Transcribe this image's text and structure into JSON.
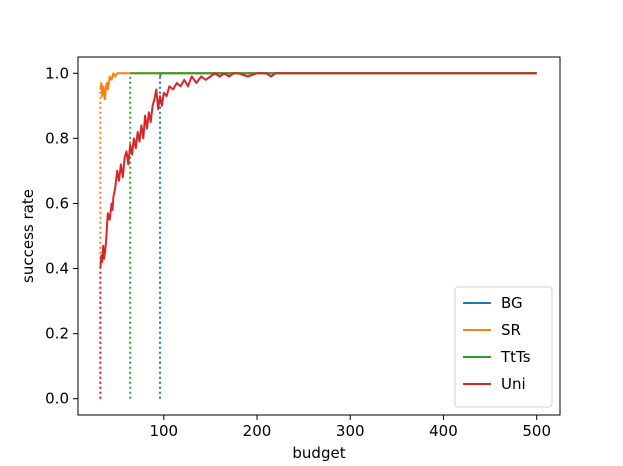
{
  "chart_data": {
    "type": "line",
    "title": "",
    "xlabel": "budget",
    "ylabel": "success rate",
    "xlim": [
      8,
      525
    ],
    "ylim": [
      -0.05,
      1.05
    ],
    "xticks": [
      100,
      200,
      300,
      400,
      500
    ],
    "yticks": [
      0.0,
      0.2,
      0.4,
      0.6,
      0.8,
      1.0
    ],
    "xtick_labels": [
      "100",
      "200",
      "300",
      "400",
      "500"
    ],
    "ytick_labels": [
      "0.0",
      "0.2",
      "0.4",
      "0.6",
      "0.8",
      "1.0"
    ],
    "grid": false,
    "legend_position": "lower-right",
    "series": [
      {
        "name": "BG",
        "color": "#1f77b4",
        "x": [
          96,
          97,
          100,
          105,
          120,
          150,
          200,
          300,
          400,
          500
        ],
        "y": [
          0.99,
          1.0,
          1.0,
          1.0,
          1.0,
          1.0,
          1.0,
          1.0,
          1.0,
          1.0
        ],
        "start_marker": {
          "x": 96,
          "y_from": 0.0,
          "y_to": 0.99
        }
      },
      {
        "name": "SR",
        "color": "#ff7f0e",
        "x": [
          32,
          33,
          34,
          35,
          36,
          37,
          38,
          39,
          40,
          41,
          42,
          44,
          46,
          48,
          50,
          55,
          60,
          100,
          200,
          300,
          400,
          500
        ],
        "y": [
          0.95,
          0.97,
          0.93,
          0.96,
          0.94,
          0.92,
          0.96,
          0.97,
          0.95,
          0.97,
          0.99,
          0.98,
          1.0,
          0.99,
          1.0,
          1.0,
          1.0,
          1.0,
          1.0,
          1.0,
          1.0,
          1.0
        ],
        "start_marker": {
          "x": 32,
          "y_from": 0.0,
          "y_to": 0.95
        }
      },
      {
        "name": "TtTs",
        "color": "#2ca02c",
        "x": [
          64,
          65,
          70,
          80,
          100,
          150,
          200,
          300,
          400,
          500
        ],
        "y": [
          1.0,
          1.0,
          1.0,
          1.0,
          1.0,
          1.0,
          1.0,
          1.0,
          1.0,
          1.0
        ],
        "start_marker": {
          "x": 64,
          "y_from": 0.0,
          "y_to": 1.0
        }
      },
      {
        "name": "Uni",
        "color": "#d62728",
        "x": [
          32,
          33,
          34,
          35,
          36,
          37,
          38,
          40,
          42,
          44,
          45,
          46,
          48,
          50,
          52,
          54,
          56,
          58,
          60,
          62,
          64,
          66,
          68,
          70,
          72,
          74,
          76,
          78,
          80,
          82,
          84,
          86,
          88,
          90,
          92,
          94,
          96,
          98,
          100,
          103,
          106,
          110,
          114,
          118,
          122,
          126,
          130,
          135,
          140,
          145,
          150,
          155,
          160,
          165,
          170,
          175,
          180,
          190,
          200,
          210,
          215,
          220,
          230,
          260,
          300,
          400,
          500
        ],
        "y": [
          0.4,
          0.44,
          0.42,
          0.47,
          0.43,
          0.45,
          0.48,
          0.57,
          0.55,
          0.6,
          0.58,
          0.62,
          0.65,
          0.7,
          0.67,
          0.72,
          0.68,
          0.74,
          0.76,
          0.72,
          0.78,
          0.75,
          0.8,
          0.77,
          0.82,
          0.79,
          0.84,
          0.8,
          0.87,
          0.83,
          0.88,
          0.85,
          0.9,
          0.92,
          0.95,
          0.89,
          0.93,
          0.9,
          0.94,
          0.93,
          0.96,
          0.95,
          0.97,
          0.96,
          0.98,
          0.96,
          0.99,
          0.97,
          0.99,
          0.98,
          0.99,
          1.0,
          0.99,
          1.0,
          0.99,
          1.0,
          1.0,
          0.99,
          1.0,
          1.0,
          0.99,
          1.0,
          1.0,
          1.0,
          1.0,
          1.0,
          1.0
        ],
        "start_marker": {
          "x": 32,
          "y_from": 0.0,
          "y_to": 0.4
        }
      }
    ]
  }
}
